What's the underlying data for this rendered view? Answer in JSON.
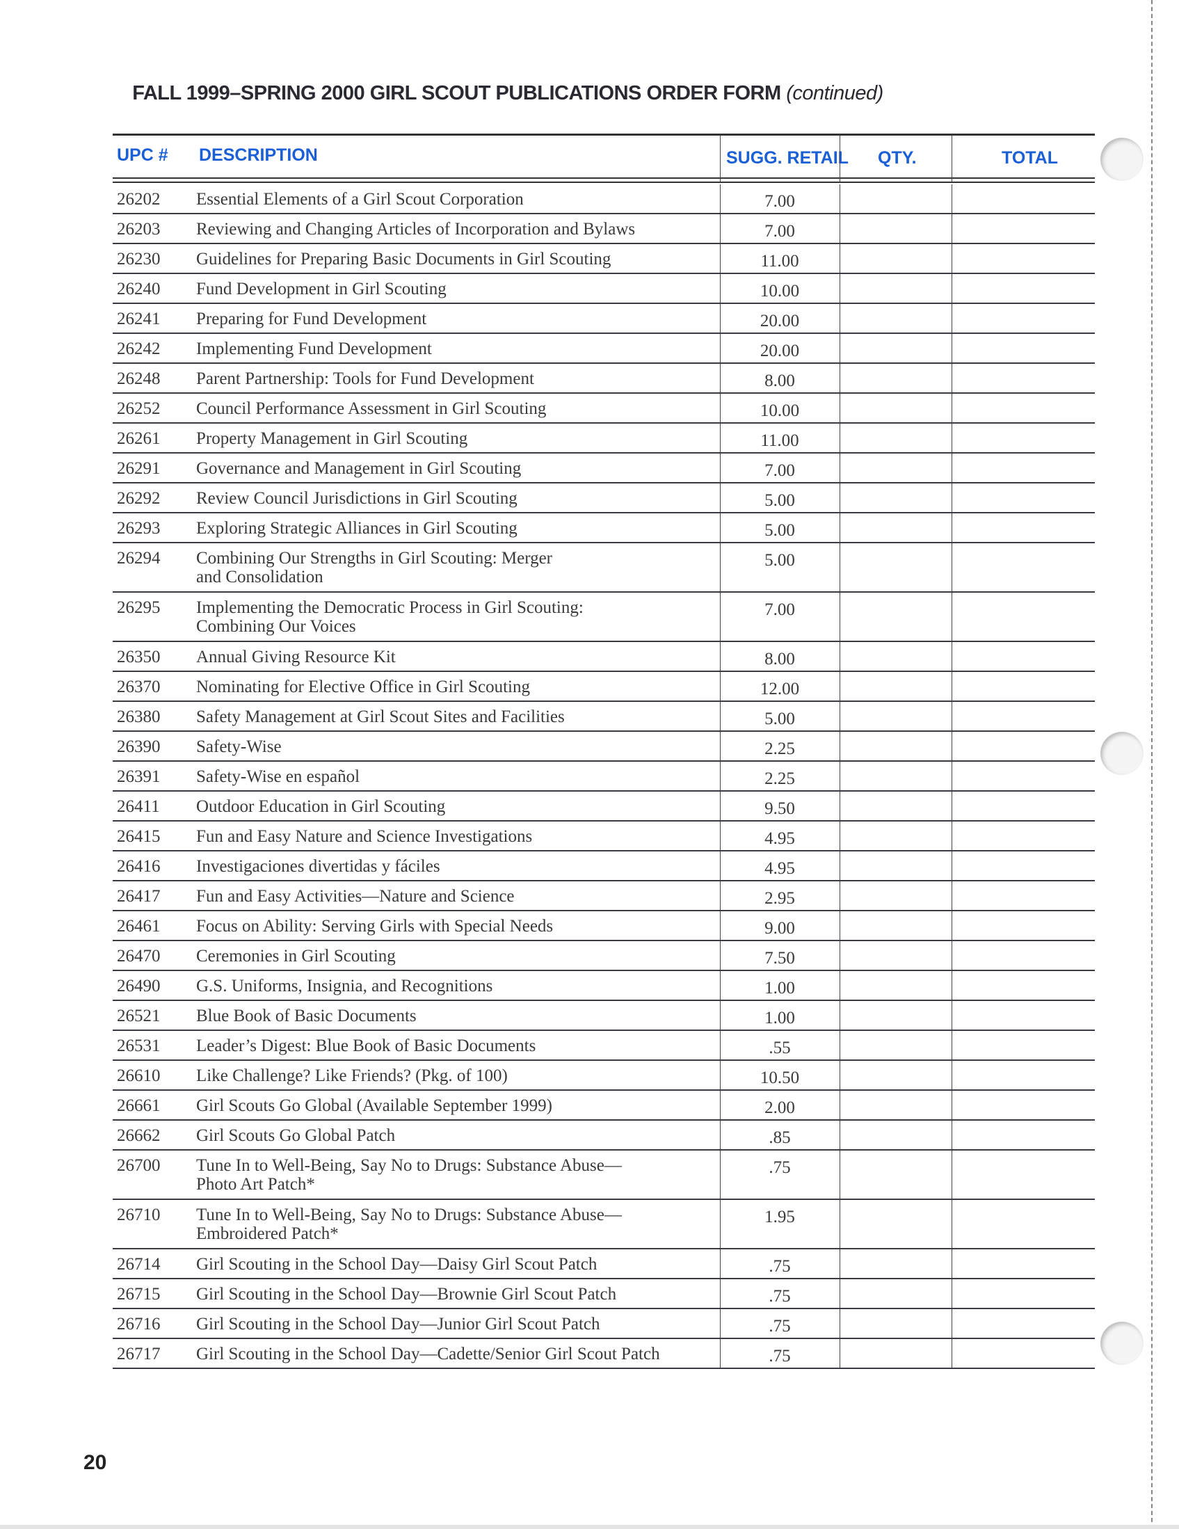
{
  "title": {
    "main": "FALL 1999–SPRING 2000 GIRL SCOUT PUBLICATIONS ORDER FORM",
    "suffix": "(continued)"
  },
  "columns": {
    "upc": "UPC #",
    "description": "DESCRIPTION",
    "retail": "SUGG. RETAIL",
    "qty": "QTY.",
    "total": "TOTAL"
  },
  "header_color": "#1a5fd6",
  "rows": [
    {
      "upc": "26202",
      "desc": [
        "Essential Elements of a Girl Scout Corporation"
      ],
      "price": "7.00"
    },
    {
      "upc": "26203",
      "desc": [
        "Reviewing and Changing Articles of Incorporation and Bylaws"
      ],
      "price": "7.00"
    },
    {
      "upc": "26230",
      "desc": [
        "Guidelines for Preparing Basic Documents in Girl Scouting"
      ],
      "price": "11.00"
    },
    {
      "upc": "26240",
      "desc": [
        "Fund Development in Girl Scouting"
      ],
      "price": "10.00"
    },
    {
      "upc": "26241",
      "desc": [
        "Preparing for Fund Development"
      ],
      "price": "20.00"
    },
    {
      "upc": "26242",
      "desc": [
        "Implementing Fund Development"
      ],
      "price": "20.00"
    },
    {
      "upc": "26248",
      "desc": [
        "Parent Partnership:  Tools for Fund Development"
      ],
      "price": "8.00"
    },
    {
      "upc": "26252",
      "desc": [
        "Council Performance Assessment in Girl Scouting"
      ],
      "price": "10.00"
    },
    {
      "upc": "26261",
      "desc": [
        "Property Management in Girl Scouting"
      ],
      "price": "11.00"
    },
    {
      "upc": "26291",
      "desc": [
        "Governance and Management in Girl Scouting"
      ],
      "price": "7.00"
    },
    {
      "upc": "26292",
      "desc": [
        "Review Council Jurisdictions in Girl Scouting"
      ],
      "price": "5.00"
    },
    {
      "upc": "26293",
      "desc": [
        "Exploring Strategic Alliances in Girl Scouting"
      ],
      "price": "5.00"
    },
    {
      "upc": "26294",
      "desc": [
        "Combining Our Strengths in Girl Scouting: Merger",
        "and Consolidation"
      ],
      "price": "5.00"
    },
    {
      "upc": "26295",
      "desc": [
        "Implementing the Democratic Process in Girl Scouting:",
        "Combining Our Voices"
      ],
      "price": "7.00"
    },
    {
      "upc": "26350",
      "desc": [
        "Annual Giving Resource Kit"
      ],
      "price": "8.00"
    },
    {
      "upc": "26370",
      "desc": [
        "Nominating for Elective Office in Girl Scouting"
      ],
      "price": "12.00"
    },
    {
      "upc": "26380",
      "desc": [
        "Safety Management at Girl Scout Sites and Facilities"
      ],
      "price": "5.00"
    },
    {
      "upc": "26390",
      "desc": [
        "Safety-Wise"
      ],
      "price": "2.25"
    },
    {
      "upc": "26391",
      "desc": [
        "Safety-Wise en español"
      ],
      "price": "2.25"
    },
    {
      "upc": "26411",
      "desc": [
        "Outdoor Education in Girl Scouting"
      ],
      "price": "9.50"
    },
    {
      "upc": "26415",
      "desc": [
        "Fun and Easy Nature and Science Investigations"
      ],
      "price": "4.95"
    },
    {
      "upc": "26416",
      "desc": [
        "Investigaciones divertidas y fáciles"
      ],
      "price": "4.95"
    },
    {
      "upc": "26417",
      "desc": [
        "Fun and Easy Activities—Nature and Science"
      ],
      "price": "2.95"
    },
    {
      "upc": "26461",
      "desc": [
        "Focus on Ability: Serving Girls with Special Needs"
      ],
      "price": "9.00"
    },
    {
      "upc": "26470",
      "desc": [
        "Ceremonies in Girl Scouting"
      ],
      "price": "7.50"
    },
    {
      "upc": "26490",
      "desc": [
        "G.S. Uniforms, Insignia, and Recognitions"
      ],
      "price": "1.00"
    },
    {
      "upc": "26521",
      "desc": [
        "Blue Book of Basic Documents"
      ],
      "price": "1.00"
    },
    {
      "upc": "26531",
      "desc": [
        "Leader’s Digest: Blue Book of Basic Documents"
      ],
      "price": ".55"
    },
    {
      "upc": "26610",
      "desc": [
        "Like Challenge? Like Friends?  (Pkg. of 100)"
      ],
      "price": "10.50"
    },
    {
      "upc": "26661",
      "desc": [
        "Girl Scouts Go Global (Available September 1999)"
      ],
      "price": "2.00"
    },
    {
      "upc": "26662",
      "desc": [
        "Girl Scouts Go Global Patch"
      ],
      "price": ".85"
    },
    {
      "upc": "26700",
      "desc": [
        "Tune In to Well-Being, Say No to Drugs: Substance Abuse—",
        "Photo Art Patch*"
      ],
      "price": ".75"
    },
    {
      "upc": "26710",
      "desc": [
        "Tune In to Well-Being, Say No to Drugs: Substance Abuse—",
        "Embroidered Patch*"
      ],
      "price": "1.95"
    },
    {
      "upc": "26714",
      "desc": [
        "Girl Scouting in the School Day—Daisy Girl Scout Patch"
      ],
      "price": ".75"
    },
    {
      "upc": "26715",
      "desc": [
        "Girl Scouting in the School Day—Brownie Girl Scout Patch"
      ],
      "price": ".75"
    },
    {
      "upc": "26716",
      "desc": [
        "Girl Scouting in the School Day—Junior Girl Scout Patch"
      ],
      "price": ".75"
    },
    {
      "upc": "26717",
      "desc": [
        "Girl Scouting in the School Day—Cadette/Senior Girl Scout Patch"
      ],
      "price": ".75"
    }
  ],
  "page_number": "20"
}
